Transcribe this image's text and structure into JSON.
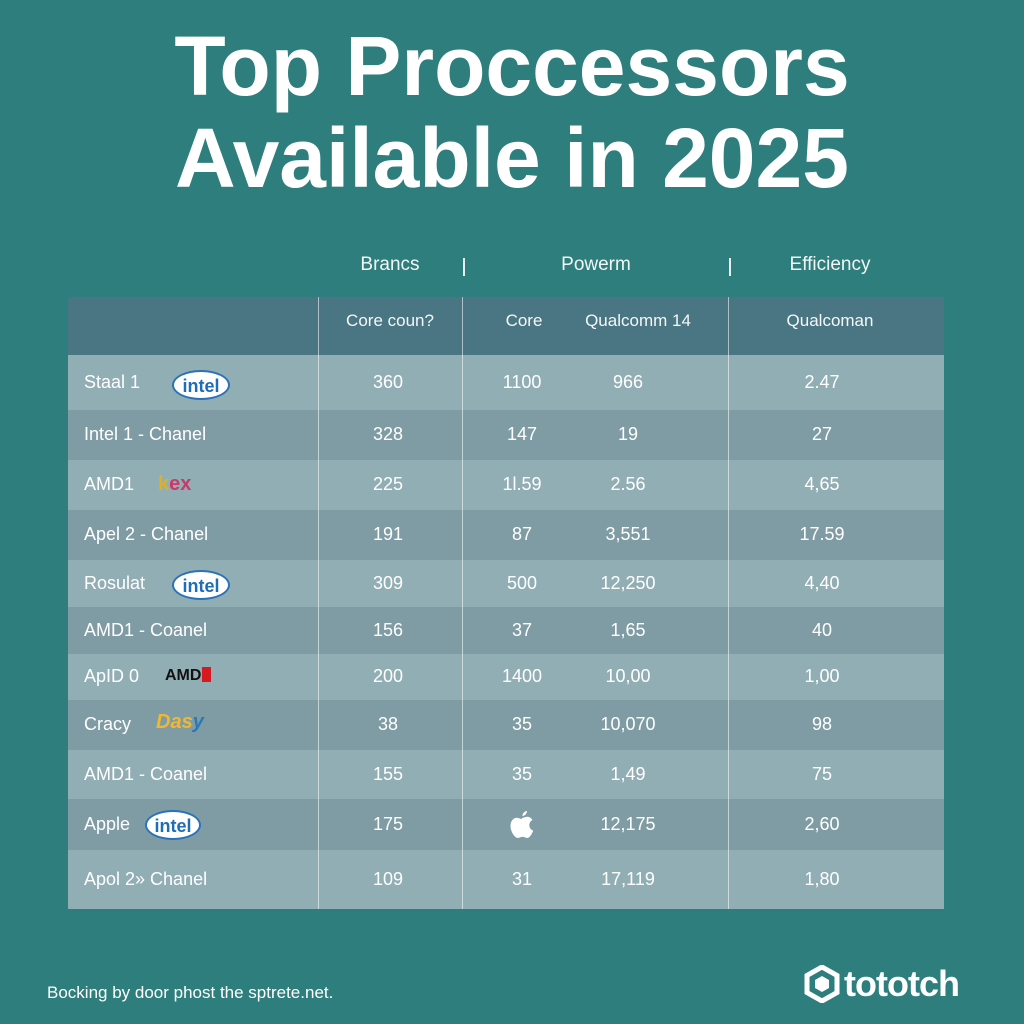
{
  "title": {
    "line1": "Top Proccessors",
    "line2": "Available in 2025"
  },
  "group_headers": {
    "brands": "Brancs",
    "power": "Powerm",
    "efficiency": "Efficiency"
  },
  "column_headers": {
    "core_count": "Core coun?",
    "core": "Core",
    "qualcomm14": "Qualcomm 14",
    "qualcoman": "Qualcoman"
  },
  "chart_data": {
    "type": "table",
    "title": "Top Proccessors Available in 2025",
    "group_headers": [
      "Brancs",
      "Powerm",
      "Efficiency"
    ],
    "columns": [
      "",
      "Core coun?",
      "Core",
      "Qualcomm 14",
      "Qualcoman"
    ],
    "rows": [
      {
        "name": "Staal 1",
        "logo": "intel",
        "core_count": "360",
        "core": "1100",
        "qualcomm14": "966",
        "qualcoman": "2.47"
      },
      {
        "name": "Intel 1 - Chanel",
        "logo": "",
        "core_count": "328",
        "core": "147",
        "qualcomm14": "19",
        "qualcoman": "27"
      },
      {
        "name": "AMD1",
        "logo": "kex",
        "core_count": "225",
        "core": "1l.59",
        "qualcomm14": "2.56",
        "qualcoman": "4,65"
      },
      {
        "name": "Apel 2 - Chanel",
        "logo": "",
        "core_count": "191",
        "core": "87",
        "qualcomm14": "3,551",
        "qualcoman": "17.59"
      },
      {
        "name": "Rosulat",
        "logo": "intel",
        "core_count": "309",
        "core": "500",
        "qualcomm14": "12,250",
        "qualcoman": "4,40"
      },
      {
        "name": "AMD1 - Coanel",
        "logo": "",
        "core_count": "156",
        "core": "37",
        "qualcomm14": "1,65",
        "qualcoman": "40"
      },
      {
        "name": "ApID 0",
        "logo": "amd",
        "core_count": "200",
        "core": "1400",
        "qualcomm14": "10,00",
        "qualcoman": "1,00"
      },
      {
        "name": "Cracy",
        "logo": "dasy",
        "core_count": "38",
        "core": "35",
        "qualcomm14": "10,070",
        "qualcoman": "98"
      },
      {
        "name": "AMD1 - Coanel",
        "logo": "",
        "core_count": "155",
        "core": "35",
        "qualcomm14": "1,49",
        "qualcoman": "75"
      },
      {
        "name": "Apple",
        "logo": "intel",
        "core_count": "175",
        "core": "apple",
        "qualcomm14": "12,175",
        "qualcoman": "2,60"
      },
      {
        "name": "Apol 2» Chanel",
        "logo": "",
        "core_count": "109",
        "core": "31",
        "qualcomm14": "17,119",
        "qualcoman": "1,80"
      }
    ]
  },
  "logos": {
    "intel": "intel",
    "kex": {
      "k": "k",
      "rest": "ex"
    },
    "amd": "AMD",
    "dasy": {
      "main": "Das",
      "y": "y"
    }
  },
  "footer": {
    "text": "Bocking by door phost the sptrete.net.",
    "brand": "tototch"
  },
  "colors": {
    "background": "#2d7e7c",
    "header": "#4a7684",
    "row_light": "#92aeb5",
    "row_dark": "#7f9ca5"
  }
}
